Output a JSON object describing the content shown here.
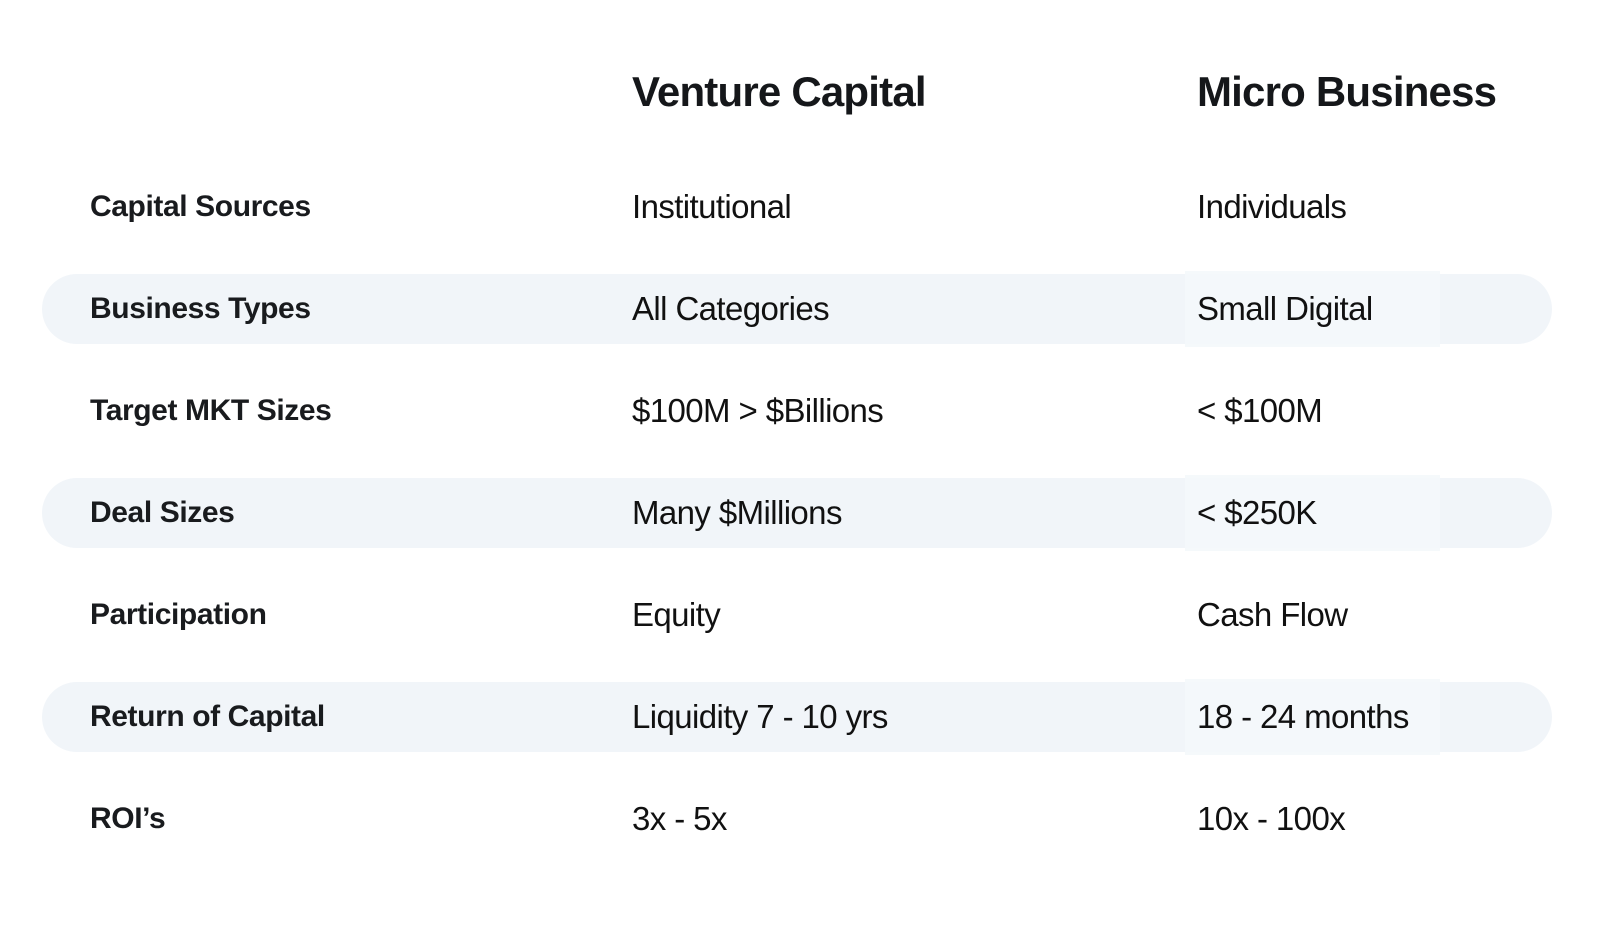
{
  "header": {
    "col_vc": "Venture Capital",
    "col_mb": "Micro Business"
  },
  "rows": [
    {
      "label": "Capital Sources",
      "vc": "Institutional",
      "mb": "Individuals"
    },
    {
      "label": "Business Types",
      "vc": "All Categories",
      "mb": "Small Digital"
    },
    {
      "label": "Target MKT Sizes",
      "vc": "$100M > $Billions",
      "mb": "< $100M"
    },
    {
      "label": "Deal Sizes",
      "vc": "Many $Millions",
      "mb": "< $250K"
    },
    {
      "label": "Participation",
      "vc": "Equity",
      "mb": "Cash Flow"
    },
    {
      "label": "Return of Capital",
      "vc": "Liquidity 7 - 10 yrs",
      "mb": "18 - 24 months"
    },
    {
      "label": "ROI’s",
      "vc": "3x - 5x",
      "mb": "10x - 100x"
    }
  ],
  "colors": {
    "band": "#f1f5f9",
    "text": "#141619",
    "background": "#ffffff"
  },
  "chart_data": {
    "type": "table",
    "title": "",
    "columns": [
      "",
      "Venture Capital",
      "Micro Business"
    ],
    "rows": [
      [
        "Capital Sources",
        "Institutional",
        "Individuals"
      ],
      [
        "Business Types",
        "All Categories",
        "Small Digital"
      ],
      [
        "Target MKT Sizes",
        "$100M > $Billions",
        "< $100M"
      ],
      [
        "Deal Sizes",
        "Many $Millions",
        "< $250K"
      ],
      [
        "Participation",
        "Equity",
        "Cash Flow"
      ],
      [
        "Return of Capital",
        "Liquidity 7 - 10 yrs",
        "18 - 24 months"
      ],
      [
        "ROI’s",
        "3x - 5x",
        "10x - 100x"
      ]
    ],
    "layout_hints": {
      "striped_rows": [
        1,
        3,
        5
      ],
      "stripe_color": "#f1f5f9",
      "grid": false
    }
  }
}
